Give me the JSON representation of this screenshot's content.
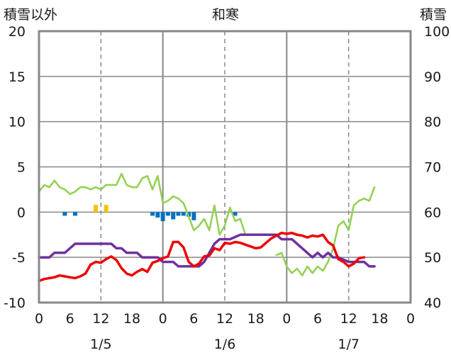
{
  "chart_data": {
    "type": "line",
    "title": "和寒",
    "left_axis_label": "積雪以外",
    "right_axis_label": "積雪",
    "y_left": {
      "range": [
        -10,
        20
      ],
      "ticks": [
        "20",
        "15",
        "10",
        "5",
        "0",
        "-5",
        "-10"
      ]
    },
    "y_right": {
      "range": [
        40,
        100
      ],
      "ticks": [
        "100",
        "90",
        "80",
        "70",
        "60",
        "50",
        "40"
      ]
    },
    "x_hours": {
      "range": [
        0,
        72
      ],
      "tick_labels": [
        "0",
        "6",
        "12",
        "18",
        "0",
        "6",
        "12",
        "18",
        "0",
        "6",
        "12",
        "18",
        "0"
      ]
    },
    "dates": [
      "1/5",
      "1/6",
      "1/7"
    ],
    "grid": true,
    "colors": {
      "temperature": "#ee0000",
      "dewpoint": "#7030a0",
      "humidity": "#92d050",
      "precip_bars": "#0070c0",
      "sunshine_bars": "#ffc000"
    },
    "series": [
      {
        "key": "temperature",
        "axis": "left",
        "values": [
          [
            0,
            -7.6
          ],
          [
            1,
            -7.4
          ],
          [
            2,
            -7.3
          ],
          [
            3,
            -7.2
          ],
          [
            4,
            -7.0
          ],
          [
            5,
            -7.1
          ],
          [
            6,
            -7.2
          ],
          [
            7,
            -7.3
          ],
          [
            8,
            -7.1
          ],
          [
            9,
            -6.8
          ],
          [
            10,
            -5.8
          ],
          [
            11,
            -5.5
          ],
          [
            12,
            -5.6
          ],
          [
            13,
            -5.2
          ],
          [
            14,
            -4.9
          ],
          [
            15,
            -5.3
          ],
          [
            16,
            -6.2
          ],
          [
            17,
            -6.8
          ],
          [
            18,
            -7.0
          ],
          [
            19,
            -6.6
          ],
          [
            20,
            -6.3
          ],
          [
            21,
            -6.6
          ],
          [
            22,
            -5.6
          ],
          [
            23,
            -5.4
          ],
          [
            24,
            -5.1
          ],
          [
            25,
            -4.9
          ],
          [
            26,
            -3.3
          ],
          [
            27,
            -3.3
          ],
          [
            28,
            -3.9
          ],
          [
            29,
            -5.5
          ],
          [
            30,
            -6.0
          ],
          [
            31,
            -5.7
          ],
          [
            32,
            -4.9
          ],
          [
            33,
            -4.8
          ],
          [
            34,
            -4.0
          ],
          [
            35,
            -4.2
          ],
          [
            36,
            -3.4
          ],
          [
            37,
            -3.5
          ],
          [
            38,
            -3.3
          ],
          [
            39,
            -3.4
          ],
          [
            40,
            -3.6
          ],
          [
            41,
            -3.8
          ],
          [
            42,
            -4.0
          ],
          [
            43,
            -3.9
          ],
          [
            44,
            -3.4
          ],
          [
            45,
            -2.9
          ],
          [
            46,
            -2.6
          ],
          [
            47,
            -2.3
          ],
          [
            48,
            -2.4
          ],
          [
            49,
            -2.3
          ],
          [
            50,
            -2.5
          ],
          [
            51,
            -2.6
          ],
          [
            52,
            -2.8
          ],
          [
            53,
            -2.6
          ],
          [
            54,
            -2.7
          ],
          [
            55,
            -2.5
          ],
          [
            56,
            -3.3
          ],
          [
            57,
            -3.7
          ],
          [
            58,
            -5.2
          ],
          [
            59,
            -5.5
          ],
          [
            60,
            -6.0
          ],
          [
            61,
            -5.7
          ],
          [
            62,
            -5.1
          ],
          [
            63,
            -5.0
          ]
        ]
      },
      {
        "key": "dewpoint",
        "axis": "left",
        "values": [
          [
            0,
            -5.0
          ],
          [
            2,
            -5.0
          ],
          [
            3,
            -4.5
          ],
          [
            5,
            -4.5
          ],
          [
            7,
            -3.5
          ],
          [
            14,
            -3.5
          ],
          [
            15,
            -4.0
          ],
          [
            16,
            -4.0
          ],
          [
            17,
            -4.5
          ],
          [
            19,
            -4.5
          ],
          [
            20,
            -5.0
          ],
          [
            23,
            -5.0
          ],
          [
            24,
            -5.5
          ],
          [
            26,
            -5.5
          ],
          [
            27,
            -6.0
          ],
          [
            31,
            -6.0
          ],
          [
            32,
            -5.5
          ],
          [
            33,
            -4.5
          ],
          [
            34,
            -3.5
          ],
          [
            35,
            -3.0
          ],
          [
            37,
            -3.0
          ],
          [
            39,
            -2.5
          ],
          [
            46,
            -2.5
          ],
          [
            47,
            -3.0
          ],
          [
            49,
            -3.0
          ],
          [
            50,
            -3.5
          ],
          [
            51,
            -4.0
          ],
          [
            52,
            -4.5
          ],
          [
            53,
            -5.0
          ],
          [
            54,
            -4.5
          ],
          [
            55,
            -5.0
          ],
          [
            56,
            -4.5
          ],
          [
            57,
            -5.0
          ],
          [
            58,
            -5.0
          ],
          [
            60,
            -5.5
          ],
          [
            63,
            -5.5
          ],
          [
            64,
            -6.0
          ],
          [
            65,
            -6.0
          ]
        ]
      },
      {
        "key": "humidity",
        "axis": "right",
        "values": [
          [
            0,
            64.5
          ],
          [
            1,
            66
          ],
          [
            2,
            65.5
          ],
          [
            3,
            67
          ],
          [
            4,
            65.5
          ],
          [
            5,
            65
          ],
          [
            6,
            64
          ],
          [
            7,
            64.5
          ],
          [
            8,
            65.5
          ],
          [
            9,
            65.5
          ],
          [
            10,
            65
          ],
          [
            11,
            65.5
          ],
          [
            12,
            65
          ],
          [
            13,
            66
          ],
          [
            14,
            66
          ],
          [
            15,
            66
          ],
          [
            16,
            68.5
          ],
          [
            17,
            66
          ],
          [
            18,
            65.5
          ],
          [
            19,
            65.5
          ],
          [
            20,
            67.5
          ],
          [
            21,
            68
          ],
          [
            22,
            65
          ],
          [
            23,
            68
          ],
          [
            24,
            62
          ],
          [
            25,
            62.5
          ],
          [
            26,
            63.5
          ],
          [
            27,
            63
          ],
          [
            28,
            62
          ],
          [
            29,
            59
          ],
          [
            30,
            56
          ],
          [
            31,
            57
          ],
          [
            32,
            58.5
          ],
          [
            33,
            56
          ],
          [
            34,
            61.5
          ],
          [
            35,
            55
          ],
          [
            36,
            57
          ],
          [
            37,
            61
          ],
          [
            38,
            58
          ],
          [
            39,
            58.5
          ],
          [
            40,
            55
          ],
          [
            41,
            null
          ],
          [
            45,
            null
          ],
          [
            46,
            50.5
          ],
          [
            47,
            51
          ],
          [
            48,
            48
          ],
          [
            49,
            46.5
          ],
          [
            50,
            47.5
          ],
          [
            51,
            46
          ],
          [
            52,
            48
          ],
          [
            53,
            46.5
          ],
          [
            54,
            48
          ],
          [
            55,
            47
          ],
          [
            56,
            49
          ],
          [
            57,
            52
          ],
          [
            58,
            57
          ],
          [
            59,
            58
          ],
          [
            60,
            56
          ],
          [
            61,
            61.5
          ],
          [
            62,
            62.5
          ],
          [
            63,
            63
          ],
          [
            64,
            62.5
          ],
          [
            65,
            65.5
          ]
        ]
      }
    ],
    "precip_bars": [
      [
        5,
        -0.4
      ],
      [
        7,
        -0.4
      ],
      [
        22,
        -0.4
      ],
      [
        23,
        -0.6
      ],
      [
        24,
        -1.0
      ],
      [
        25,
        -0.4
      ],
      [
        26,
        -0.8
      ],
      [
        27,
        -0.4
      ],
      [
        28,
        -0.4
      ],
      [
        29,
        -0.5
      ],
      [
        30,
        -0.9
      ],
      [
        38,
        -0.4
      ]
    ],
    "sunshine_bars": [
      [
        11,
        0.8
      ],
      [
        13,
        0.8
      ]
    ]
  }
}
